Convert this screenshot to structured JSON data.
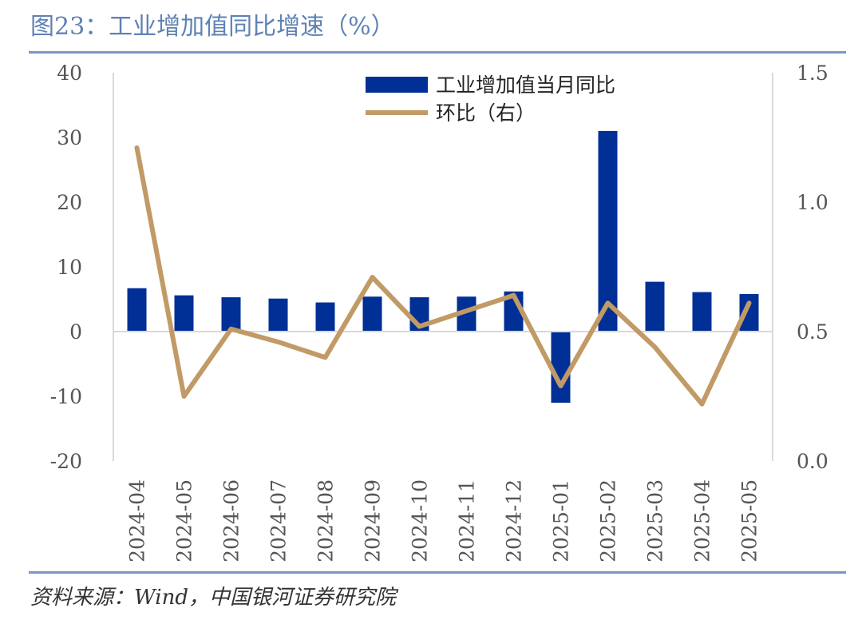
{
  "title": "图23：工业增加值同比增速（%）",
  "source": "资料来源：Wind，中国银河证券研究院",
  "chart_data": {
    "type": "bar",
    "categories": [
      "2024-04",
      "2024-05",
      "2024-06",
      "2024-07",
      "2024-08",
      "2024-09",
      "2024-10",
      "2024-11",
      "2024-12",
      "2025-01",
      "2025-02",
      "2025-03",
      "2025-04",
      "2025-05"
    ],
    "series": [
      {
        "name": "工业增加值当月同比",
        "type": "bar",
        "axis": "left",
        "color": "#002f96",
        "values": [
          6.7,
          5.6,
          5.3,
          5.1,
          4.5,
          5.4,
          5.3,
          5.4,
          6.2,
          -11.0,
          31.0,
          7.7,
          6.1,
          5.8
        ]
      },
      {
        "name": "环比（右）",
        "type": "line",
        "axis": "right",
        "color": "#c19a66",
        "values": [
          1.21,
          0.25,
          0.51,
          0.46,
          0.4,
          0.71,
          0.52,
          0.58,
          0.64,
          0.29,
          0.61,
          0.44,
          0.22,
          0.61
        ]
      }
    ],
    "y_left": {
      "range": [
        -20,
        40
      ],
      "ticks": [
        40,
        30,
        20,
        10,
        0,
        -10,
        -20
      ],
      "tick_labels": [
        "40",
        "30",
        "20",
        "10",
        "0",
        "-10",
        "-20"
      ]
    },
    "y_right": {
      "range": [
        0,
        1.5
      ],
      "ticks": [
        1.5,
        1.0,
        0.5,
        0.0
      ],
      "tick_labels": [
        "1.5",
        "1.0",
        "0.5",
        "0.0"
      ]
    },
    "grid": false,
    "legend_position": "top-center"
  }
}
